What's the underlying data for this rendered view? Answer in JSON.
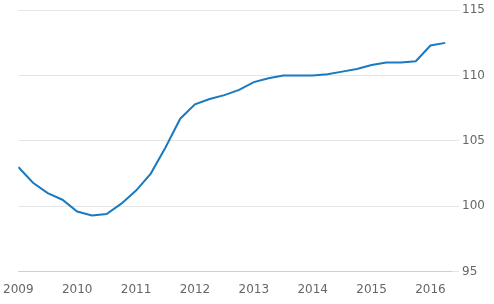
{
  "chart_data": {
    "type": "line",
    "x": [
      2009.0,
      2009.25,
      2009.5,
      2009.75,
      2010.0,
      2010.25,
      2010.5,
      2010.75,
      2011.0,
      2011.25,
      2011.5,
      2011.75,
      2012.0,
      2012.25,
      2012.5,
      2012.75,
      2013.0,
      2013.25,
      2013.5,
      2013.75,
      2014.0,
      2014.25,
      2014.5,
      2014.75,
      2015.0,
      2015.25,
      2015.5,
      2015.75,
      2016.0,
      2016.25
    ],
    "values": [
      103.0,
      101.8,
      101.0,
      100.5,
      99.6,
      99.3,
      99.4,
      100.2,
      101.2,
      102.5,
      104.5,
      106.7,
      107.8,
      108.2,
      108.5,
      108.9,
      109.5,
      109.8,
      110.0,
      110.0,
      110.0,
      110.1,
      110.3,
      110.5,
      110.8,
      111.0,
      111.0,
      111.1,
      112.3,
      112.5
    ],
    "color": "#1a7abf",
    "xlim": [
      2009.0,
      2016.35
    ],
    "ylim": [
      95,
      115
    ],
    "xticks": [
      2009,
      2010,
      2011,
      2012,
      2013,
      2014,
      2015,
      2016
    ],
    "yticks": [
      95,
      100,
      105,
      110,
      115
    ],
    "grid": "y"
  }
}
